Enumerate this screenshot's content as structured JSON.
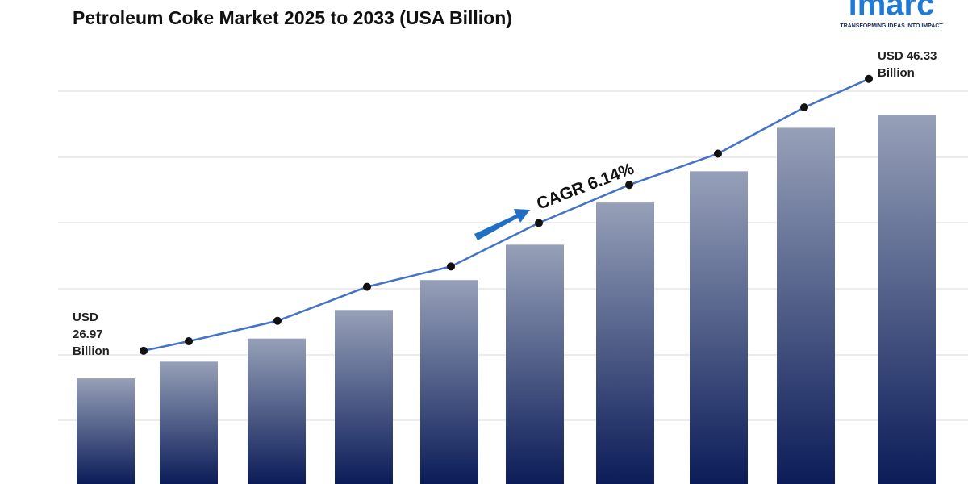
{
  "chart_data": {
    "type": "bar",
    "title": "Petroleum Coke Market 2025 to 2033 (USA Billion)",
    "categories": [
      null,
      null,
      null,
      null,
      null,
      null,
      null,
      null,
      null,
      null
    ],
    "series": [
      {
        "type": "bar",
        "color": "#0d1f5c",
        "values": [
          26.97,
          28.2,
          29.9,
          32.0,
          34.2,
          36.8,
          39.9,
          42.2,
          45.4,
          46.33
        ],
        "value_labels": [
          "USD 26.97 Billion",
          null,
          null,
          null,
          null,
          null,
          null,
          null,
          null,
          "USD 46.33 Billion"
        ]
      },
      {
        "type": "line",
        "color": "#4472c4",
        "values": [
          29.0,
          29.7,
          31.2,
          33.7,
          35.2,
          38.4,
          41.2,
          43.5,
          46.9,
          49.0
        ]
      }
    ],
    "annotation": "CAGR 6.14%",
    "ylim": [
      19.2,
      54.8
    ]
  },
  "branding": {
    "name": "imarc",
    "tagline": "TRANSFORMING IDEAS INTO IMPACT"
  }
}
